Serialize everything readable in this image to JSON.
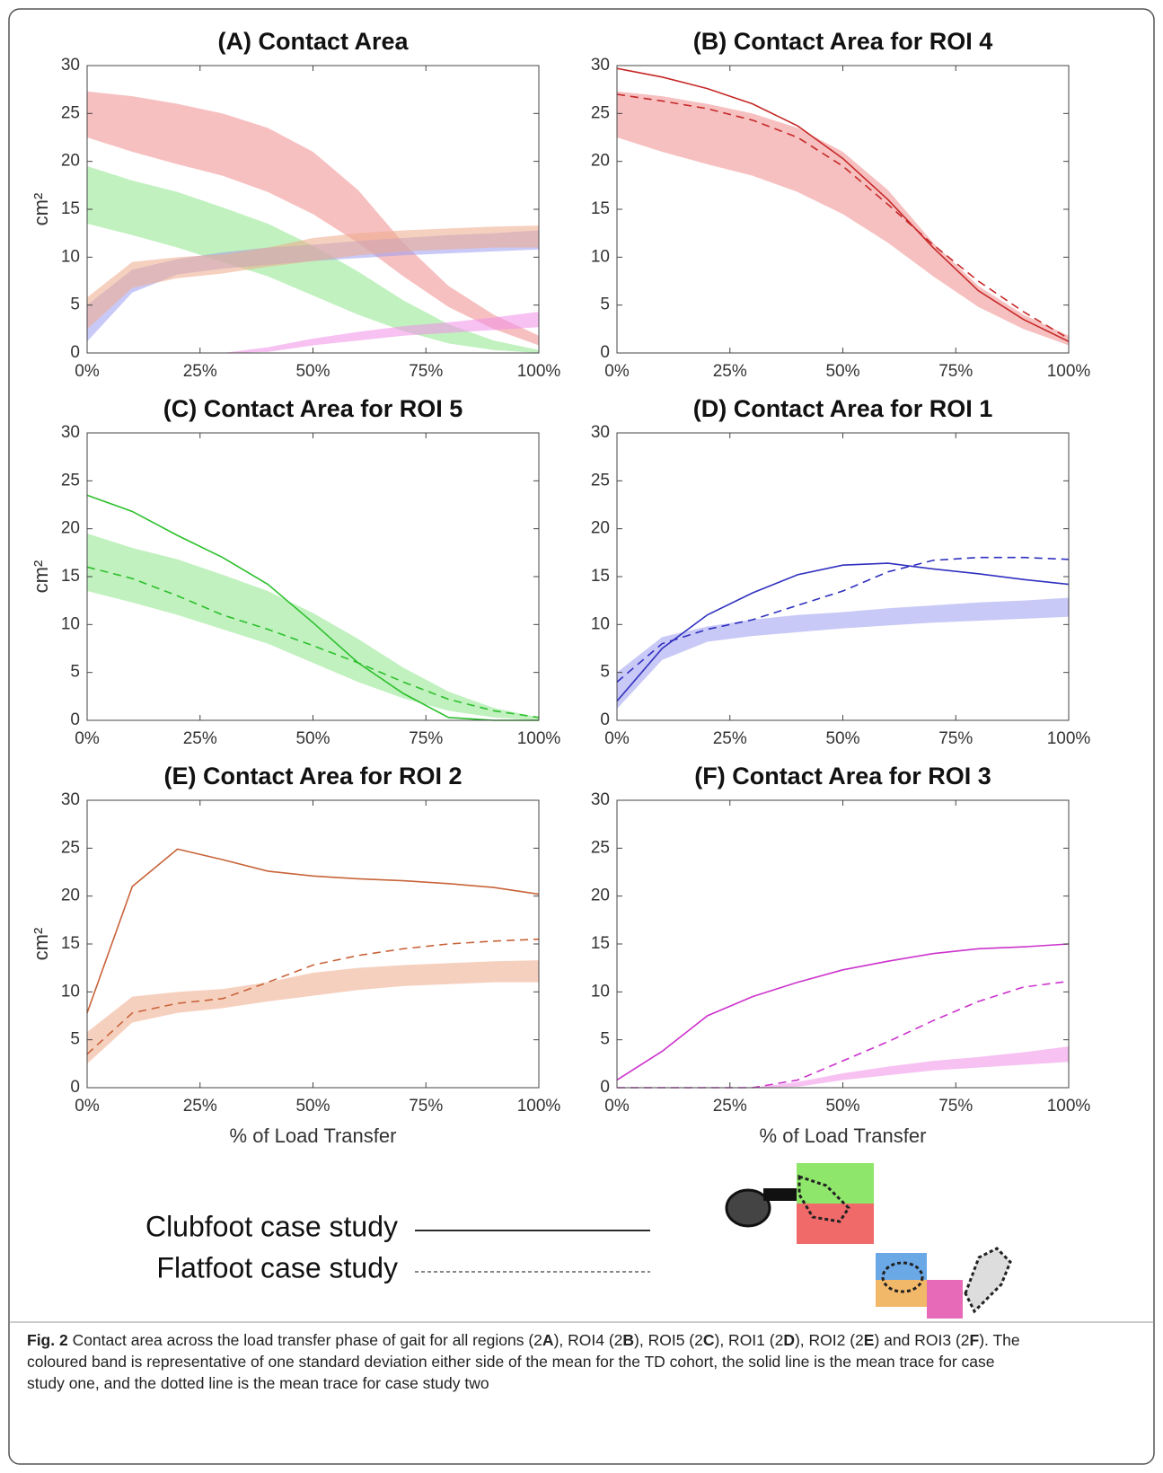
{
  "chart_data": [
    {
      "type": "line",
      "title": "(A) Contact Area",
      "y_label": "cm²",
      "x": [
        0,
        10,
        20,
        30,
        40,
        50,
        60,
        70,
        80,
        90,
        100
      ],
      "xlim": [
        0,
        100
      ],
      "xticks": [
        {
          "value": 0,
          "label": "0%"
        },
        {
          "value": 25,
          "label": "25%"
        },
        {
          "value": 50,
          "label": "50%"
        },
        {
          "value": 75,
          "label": "75%"
        },
        {
          "value": 100,
          "label": "100%"
        }
      ],
      "ylim": [
        0,
        30
      ],
      "yticks": [
        0,
        5,
        10,
        15,
        20,
        25,
        30
      ],
      "series": [
        {
          "style": "band",
          "color": "#f08c8c",
          "low": [
            22.5,
            21,
            19.7,
            18.5,
            16.8,
            14.5,
            11.5,
            8,
            4.8,
            2.5,
            0.8
          ],
          "high": [
            27.3,
            26.8,
            26,
            25,
            23.5,
            21,
            17,
            11.5,
            7,
            4,
            1.8
          ]
        },
        {
          "style": "band",
          "color": "#8ee68a",
          "low": [
            13.5,
            12.3,
            11,
            9.5,
            8,
            6,
            4,
            2.3,
            1,
            0.3,
            0
          ],
          "high": [
            19.5,
            18,
            16.8,
            15.2,
            13.5,
            11.2,
            8.5,
            5.5,
            3,
            1.3,
            0.3
          ]
        },
        {
          "style": "band",
          "color": "#9c9cf0",
          "low": [
            1.2,
            6.3,
            8.2,
            8.8,
            9.2,
            9.6,
            9.9,
            10.2,
            10.4,
            10.6,
            10.8
          ],
          "high": [
            5,
            8.7,
            9.8,
            10.5,
            11,
            11.3,
            11.7,
            12,
            12.3,
            12.5,
            12.8
          ]
        },
        {
          "style": "band",
          "color": "#eea98a",
          "low": [
            2.5,
            6.8,
            7.8,
            8.3,
            9,
            9.6,
            10.2,
            10.6,
            10.8,
            11,
            11
          ],
          "high": [
            5.8,
            9.5,
            10,
            10.3,
            11,
            12,
            12.5,
            12.8,
            13,
            13.2,
            13.3
          ]
        },
        {
          "style": "band",
          "color": "#f08ee8",
          "low": [
            0,
            0,
            0,
            0,
            0.1,
            0.8,
            1.3,
            1.8,
            2.1,
            2.4,
            2.7
          ],
          "high": [
            0,
            0,
            0,
            0,
            0.6,
            1.5,
            2.2,
            2.8,
            3.2,
            3.7,
            4.3
          ]
        }
      ]
    },
    {
      "type": "line",
      "title": "(B) Contact Area for ROI 4",
      "x": [
        0,
        10,
        20,
        30,
        40,
        50,
        60,
        70,
        80,
        90,
        100
      ],
      "xlim": [
        0,
        100
      ],
      "xticks": [
        {
          "value": 0,
          "label": "0%"
        },
        {
          "value": 25,
          "label": "25%"
        },
        {
          "value": 50,
          "label": "50%"
        },
        {
          "value": 75,
          "label": "75%"
        },
        {
          "value": 100,
          "label": "100%"
        }
      ],
      "ylim": [
        0,
        30
      ],
      "yticks": [
        0,
        5,
        10,
        15,
        20,
        25,
        30
      ],
      "series": [
        {
          "style": "band",
          "color": "#f08c8c",
          "low": [
            22.5,
            21,
            19.7,
            18.5,
            16.8,
            14.5,
            11.5,
            8,
            4.8,
            2.5,
            0.8
          ],
          "high": [
            27.3,
            26.8,
            26,
            25,
            23.5,
            21,
            17,
            11.5,
            7,
            4,
            1.8
          ]
        },
        {
          "style": "solid",
          "color": "#c62828",
          "values": [
            29.7,
            28.8,
            27.6,
            26,
            23.7,
            20.3,
            16,
            11,
            6.5,
            3.5,
            1.2
          ]
        },
        {
          "style": "dashed",
          "color": "#c62828",
          "values": [
            27,
            26.3,
            25.5,
            24.3,
            22.5,
            19.5,
            15.5,
            11.3,
            7.5,
            4.3,
            1.5
          ]
        }
      ]
    },
    {
      "type": "line",
      "title": "(C) Contact Area for ROI 5",
      "y_label": "cm²",
      "x": [
        0,
        10,
        20,
        30,
        40,
        50,
        60,
        70,
        80,
        90,
        100
      ],
      "xlim": [
        0,
        100
      ],
      "xticks": [
        {
          "value": 0,
          "label": "0%"
        },
        {
          "value": 25,
          "label": "25%"
        },
        {
          "value": 50,
          "label": "50%"
        },
        {
          "value": 75,
          "label": "75%"
        },
        {
          "value": 100,
          "label": "100%"
        }
      ],
      "ylim": [
        0,
        30
      ],
      "yticks": [
        0,
        5,
        10,
        15,
        20,
        25,
        30
      ],
      "series": [
        {
          "style": "band",
          "color": "#8ee68a",
          "low": [
            13.5,
            12.3,
            11,
            9.5,
            8,
            6,
            4,
            2.3,
            1,
            0.3,
            0
          ],
          "high": [
            19.5,
            18,
            16.8,
            15.2,
            13.5,
            11.2,
            8.5,
            5.5,
            3,
            1.3,
            0.3
          ]
        },
        {
          "style": "solid",
          "color": "#2cc02c",
          "values": [
            23.5,
            21.8,
            19.3,
            17,
            14.2,
            10.2,
            6,
            2.8,
            0.3,
            0,
            0
          ]
        },
        {
          "style": "dashed",
          "color": "#2cc02c",
          "values": [
            16,
            14.8,
            13,
            11,
            9.5,
            7.8,
            6,
            4,
            2.2,
            1,
            0.3
          ]
        }
      ]
    },
    {
      "type": "line",
      "title": "(D) Contact Area for ROI 1",
      "x": [
        0,
        10,
        20,
        30,
        40,
        50,
        60,
        70,
        80,
        90,
        100
      ],
      "xlim": [
        0,
        100
      ],
      "xticks": [
        {
          "value": 0,
          "label": "0%"
        },
        {
          "value": 25,
          "label": "25%"
        },
        {
          "value": 50,
          "label": "50%"
        },
        {
          "value": 75,
          "label": "75%"
        },
        {
          "value": 100,
          "label": "100%"
        }
      ],
      "ylim": [
        0,
        30
      ],
      "yticks": [
        0,
        5,
        10,
        15,
        20,
        25,
        30
      ],
      "series": [
        {
          "style": "band",
          "color": "#9c9cf0",
          "low": [
            1.2,
            6.3,
            8.2,
            8.8,
            9.2,
            9.6,
            9.9,
            10.2,
            10.4,
            10.6,
            10.8
          ],
          "high": [
            5,
            8.7,
            9.8,
            10.5,
            11,
            11.3,
            11.7,
            12,
            12.3,
            12.5,
            12.8
          ]
        },
        {
          "style": "solid",
          "color": "#3030c0",
          "values": [
            2,
            7.5,
            11,
            13.3,
            15.2,
            16.2,
            16.4,
            15.8,
            15.3,
            14.7,
            14.2
          ]
        },
        {
          "style": "dashed",
          "color": "#3030c0",
          "values": [
            4,
            8,
            9.5,
            10.5,
            12,
            13.5,
            15.5,
            16.7,
            17,
            17,
            16.8
          ]
        }
      ]
    },
    {
      "type": "line",
      "title": "(E) Contact Area for ROI 2",
      "y_label": "cm²",
      "x_label": "% of Load Transfer",
      "x": [
        0,
        10,
        20,
        30,
        40,
        50,
        60,
        70,
        80,
        90,
        100
      ],
      "xlim": [
        0,
        100
      ],
      "xticks": [
        {
          "value": 0,
          "label": "0%"
        },
        {
          "value": 25,
          "label": "25%"
        },
        {
          "value": 50,
          "label": "50%"
        },
        {
          "value": 75,
          "label": "75%"
        },
        {
          "value": 100,
          "label": "100%"
        }
      ],
      "ylim": [
        0,
        30
      ],
      "yticks": [
        0,
        5,
        10,
        15,
        20,
        25,
        30
      ],
      "series": [
        {
          "style": "band",
          "color": "#eea98a",
          "low": [
            2.5,
            6.8,
            7.8,
            8.3,
            9,
            9.6,
            10.2,
            10.6,
            10.8,
            11,
            11
          ],
          "high": [
            5.8,
            9.5,
            10,
            10.3,
            11,
            12,
            12.5,
            12.8,
            13,
            13.2,
            13.3
          ]
        },
        {
          "style": "solid",
          "color": "#c8643a",
          "values": [
            7.8,
            21,
            24.9,
            23.8,
            22.6,
            22.1,
            21.8,
            21.6,
            21.3,
            20.9,
            20.2
          ]
        },
        {
          "style": "dashed",
          "color": "#c8643a",
          "values": [
            3.5,
            7.8,
            8.8,
            9.3,
            11,
            12.8,
            13.8,
            14.5,
            15,
            15.3,
            15.5
          ]
        }
      ]
    },
    {
      "type": "line",
      "title": "(F) Contact Area for ROI 3",
      "x_label": "% of Load Transfer",
      "x": [
        0,
        10,
        20,
        30,
        40,
        50,
        60,
        70,
        80,
        90,
        100
      ],
      "xlim": [
        0,
        100
      ],
      "xticks": [
        {
          "value": 0,
          "label": "0%"
        },
        {
          "value": 25,
          "label": "25%"
        },
        {
          "value": 50,
          "label": "50%"
        },
        {
          "value": 75,
          "label": "75%"
        },
        {
          "value": 100,
          "label": "100%"
        }
      ],
      "ylim": [
        0,
        30
      ],
      "yticks": [
        0,
        5,
        10,
        15,
        20,
        25,
        30
      ],
      "series": [
        {
          "style": "band",
          "color": "#f08ee8",
          "low": [
            0,
            0,
            0,
            0,
            0.1,
            0.8,
            1.3,
            1.8,
            2.1,
            2.4,
            2.7
          ],
          "high": [
            0,
            0,
            0,
            0,
            0.6,
            1.5,
            2.2,
            2.8,
            3.2,
            3.7,
            4.3
          ]
        },
        {
          "style": "solid",
          "color": "#cc33cc",
          "values": [
            0.8,
            3.8,
            7.5,
            9.5,
            11,
            12.3,
            13.2,
            14,
            14.5,
            14.7,
            15
          ]
        },
        {
          "style": "dashed",
          "color": "#cc33cc",
          "values": [
            0,
            0,
            0,
            0,
            0.8,
            2.8,
            4.8,
            7,
            9,
            10.5,
            11.1
          ]
        }
      ]
    }
  ],
  "legend": [
    {
      "label": "Clubfoot case study",
      "style": "solid"
    },
    {
      "label": "Flatfoot case study",
      "style": "dashed"
    }
  ],
  "caption": {
    "lines": [
      [
        {
          "text": "Fig. 2",
          "bold": true
        },
        {
          "text": " Contact area across the load transfer phase of gait for all regions (2"
        },
        {
          "text": "A",
          "bold": true
        },
        {
          "text": "), ROI4 (2"
        },
        {
          "text": "B",
          "bold": true
        },
        {
          "text": "), ROI5 (2"
        },
        {
          "text": "C",
          "bold": true
        },
        {
          "text": "), ROI1 (2"
        },
        {
          "text": "D",
          "bold": true
        },
        {
          "text": "), ROI2 (2"
        },
        {
          "text": "E",
          "bold": true
        },
        {
          "text": ") and ROI3 (2"
        },
        {
          "text": "F",
          "bold": true
        },
        {
          "text": "). The"
        }
      ],
      [
        {
          "text": "coloured band is representative of one standard deviation either side of the mean for the TD cohort, the solid line is the mean trace for case"
        }
      ],
      [
        {
          "text": "study one, and the dotted line is the mean trace for case study two"
        }
      ]
    ]
  }
}
